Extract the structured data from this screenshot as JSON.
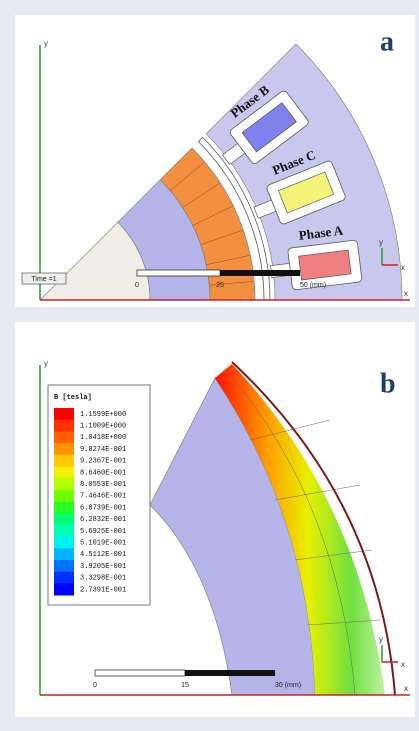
{
  "panels": [
    {
      "label": "a",
      "time": "Time =1",
      "phases": [
        {
          "name": "Phase B",
          "color": "#8080ee"
        },
        {
          "name": "Phase C",
          "color": "#f4f47a"
        },
        {
          "name": "Phase A",
          "color": "#f08080"
        }
      ],
      "scale": [
        "0",
        "25",
        "50 (mm)"
      ],
      "axes": [
        "y",
        "x"
      ]
    },
    {
      "label": "b",
      "legend": {
        "title": "B [tesla]",
        "entries": [
          {
            "label": "1.1599E+000",
            "color": "#ff0000"
          },
          {
            "label": "1.1009E+000",
            "color": "#ff3000"
          },
          {
            "label": "1.0418E+000",
            "color": "#ff6000"
          },
          {
            "label": "9.8274E-001",
            "color": "#ff9400"
          },
          {
            "label": "9.2367E-001",
            "color": "#ffc800"
          },
          {
            "label": "8.6460E-001",
            "color": "#f0f000"
          },
          {
            "label": "8.0553E-001",
            "color": "#b4ff00"
          },
          {
            "label": "7.4646E-001",
            "color": "#70ff00"
          },
          {
            "label": "6.8739E-001",
            "color": "#28ff20"
          },
          {
            "label": "6.2832E-001",
            "color": "#00ff70"
          },
          {
            "label": "5.6925E-001",
            "color": "#00ffb4"
          },
          {
            "label": "5.1019E-001",
            "color": "#00f0f0"
          },
          {
            "label": "4.5112E-001",
            "color": "#00b4ff"
          },
          {
            "label": "3.9205E-001",
            "color": "#0070ff"
          },
          {
            "label": "3.3298E-001",
            "color": "#0030ff"
          },
          {
            "label": "2.7391E-001",
            "color": "#0000ff"
          }
        ]
      },
      "scale": [
        "0",
        "15",
        "30 (mm)"
      ],
      "axes": [
        "y",
        "x"
      ]
    }
  ]
}
